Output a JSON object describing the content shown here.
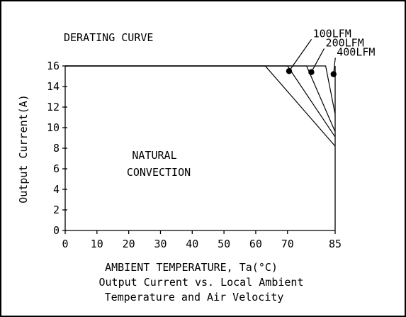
{
  "chart_data": {
    "type": "line",
    "title": "DERATING CURVE",
    "xlabel": "AMBIENT TEMPERATURE, Ta(°C)",
    "ylabel": "Output Current(A)",
    "caption_line1": "Output Current vs. Local Ambient",
    "caption_line2": "Temperature and Air Velocity",
    "annotation": [
      "NATURAL",
      "CONVECTION"
    ],
    "x_ticks": [
      0,
      10,
      20,
      30,
      40,
      50,
      60,
      70,
      85
    ],
    "x_tick_labels": [
      "0",
      "10",
      "20",
      "30",
      "40",
      "50",
      "60",
      "70",
      "85"
    ],
    "y_ticks": [
      0,
      2,
      4,
      6,
      8,
      10,
      12,
      14,
      16
    ],
    "y_tick_labels": [
      "0",
      "2",
      "4",
      "6",
      "8",
      "10",
      "12",
      "14",
      "16"
    ],
    "xlim": [
      0,
      85
    ],
    "ylim": [
      0,
      16
    ],
    "grid": false,
    "series": [
      {
        "name": "NATURAL CONVECTION",
        "x": [
          0,
          63,
          85
        ],
        "y": [
          16,
          16,
          8.2
        ]
      },
      {
        "name": "100LFM",
        "x": [
          0,
          70,
          85
        ],
        "y": [
          16,
          16,
          9.1
        ]
      },
      {
        "name": "200LFM",
        "x": [
          0,
          76,
          85
        ],
        "y": [
          16,
          16,
          9.6
        ]
      },
      {
        "name": "400LFM",
        "x": [
          0,
          82,
          85
        ],
        "y": [
          16,
          16,
          11.3
        ]
      }
    ],
    "markers": [
      {
        "series": "100LFM",
        "x": 70.5,
        "y": 15.5,
        "label_x": 78,
        "label_y": 18.8
      },
      {
        "series": "200LFM",
        "x": 77.5,
        "y": 15.4,
        "label_x": 82,
        "label_y": 17.9
      },
      {
        "series": "400LFM",
        "x": 84.5,
        "y": 15.2,
        "label_x": 85.5,
        "label_y": 17.0
      }
    ]
  }
}
